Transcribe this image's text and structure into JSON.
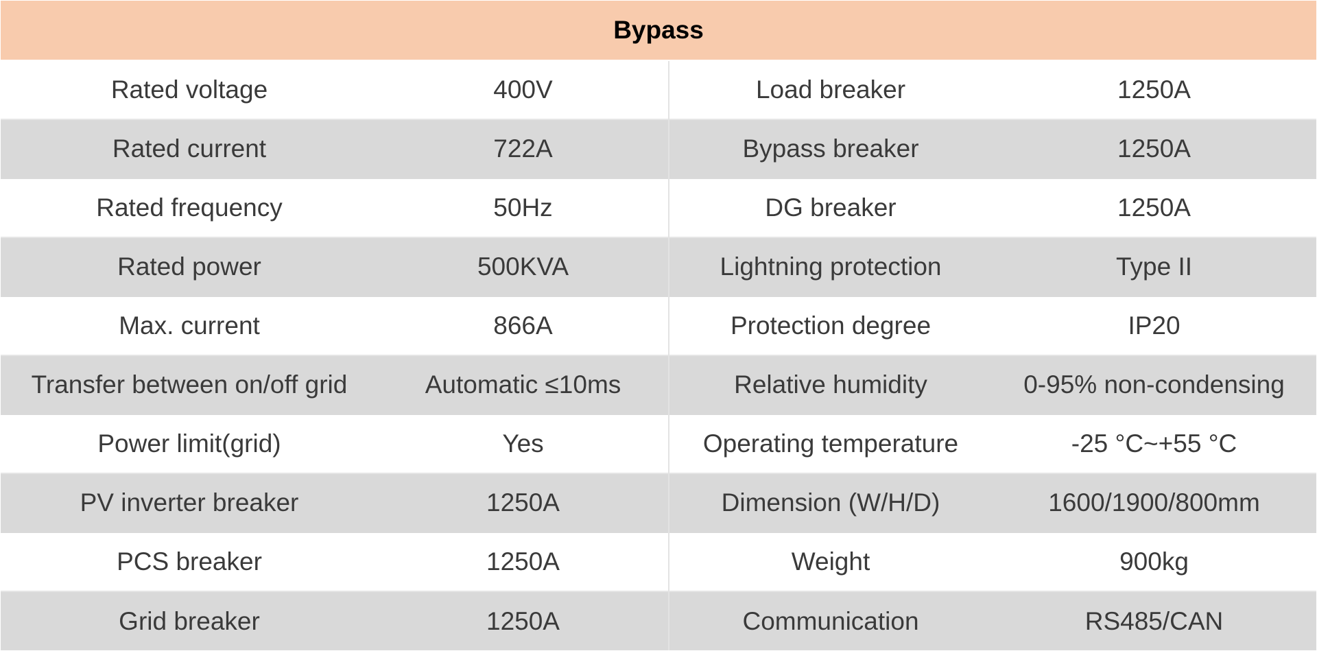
{
  "table": {
    "title": "Bypass",
    "rows": [
      [
        "Rated voltage",
        "400V",
        "Load breaker",
        "1250A"
      ],
      [
        "Rated current",
        "722A",
        "Bypass breaker",
        "1250A"
      ],
      [
        "Rated frequency",
        "50Hz",
        "DG breaker",
        "1250A"
      ],
      [
        "Rated power",
        "500KVA",
        "Lightning protection",
        "Type II"
      ],
      [
        "Max. current",
        "866A",
        "Protection degree",
        "IP20"
      ],
      [
        "Transfer between on/off grid",
        "Automatic ≤10ms",
        "Relative humidity",
        "0-95% non-condensing"
      ],
      [
        "Power limit(grid)",
        "Yes",
        "Operating temperature",
        "-25 °C~+55 °C"
      ],
      [
        "PV inverter breaker",
        "1250A",
        "Dimension (W/H/D)",
        "1600/1900/800mm"
      ],
      [
        "PCS breaker",
        "1250A",
        "Weight",
        "900kg"
      ],
      [
        "Grid breaker",
        "1250A",
        "Communication",
        "RS485/CAN"
      ]
    ],
    "colors": {
      "header_bg": "#f8cbad",
      "odd_row_bg": "#ffffff",
      "even_row_bg": "#d9d9d9",
      "text": "#3a3a3a"
    }
  }
}
